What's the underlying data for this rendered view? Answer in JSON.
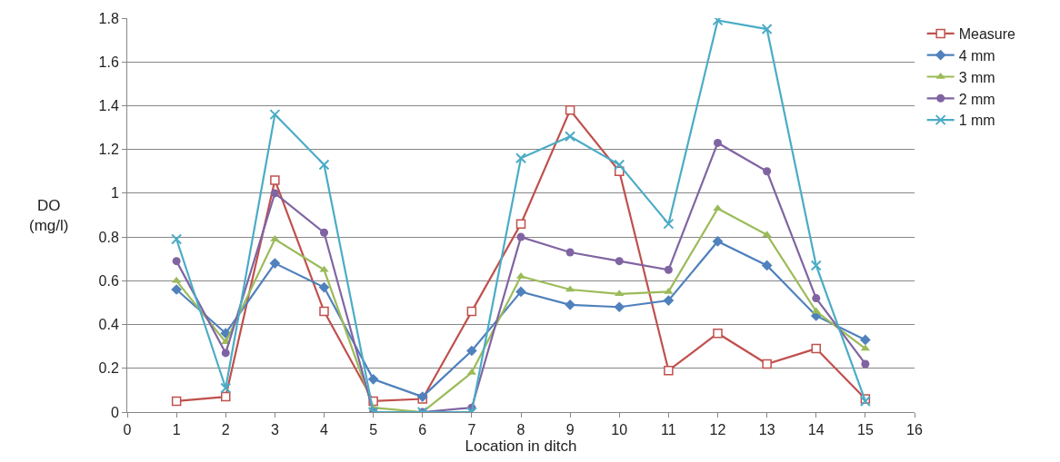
{
  "chart_data": {
    "type": "line",
    "xlabel": "Location in ditch",
    "ylabel": "DO\n(mg/l)",
    "x": [
      1,
      2,
      3,
      4,
      5,
      6,
      7,
      8,
      9,
      10,
      11,
      12,
      13,
      14,
      15
    ],
    "xlim": [
      0,
      16
    ],
    "xticks": [
      0,
      1,
      2,
      3,
      4,
      5,
      6,
      7,
      8,
      9,
      10,
      11,
      12,
      13,
      14,
      15,
      16
    ],
    "ylim": [
      0,
      1.8
    ],
    "yticks": [
      0,
      0.2,
      0.4,
      0.6,
      0.8,
      1,
      1.2,
      1.4,
      1.6,
      1.8
    ],
    "grid": "y",
    "legend": "right",
    "line_style": "solid",
    "series": [
      {
        "name": "Measure",
        "color": "#c0504d",
        "marker": "square",
        "values": [
          0.05,
          0.07,
          1.06,
          0.46,
          0.05,
          0.06,
          0.46,
          0.86,
          1.38,
          1.1,
          0.19,
          0.36,
          0.22,
          0.29,
          0.06
        ]
      },
      {
        "name": "4 mm",
        "color": "#4f81bd",
        "marker": "diamond",
        "values": [
          0.56,
          0.36,
          0.68,
          0.57,
          0.15,
          0.07,
          0.28,
          0.55,
          0.49,
          0.48,
          0.51,
          0.78,
          0.67,
          0.44,
          0.33
        ]
      },
      {
        "name": "3 mm",
        "color": "#9bbb59",
        "marker": "triangle",
        "values": [
          0.6,
          0.32,
          0.79,
          0.65,
          0.02,
          0.0,
          0.18,
          0.62,
          0.56,
          0.54,
          0.55,
          0.93,
          0.81,
          0.46,
          0.29
        ]
      },
      {
        "name": "2 mm",
        "color": "#8064a2",
        "marker": "circle",
        "values": [
          0.69,
          0.27,
          1.0,
          0.82,
          0.0,
          0.0,
          0.02,
          0.8,
          0.73,
          0.69,
          0.65,
          1.23,
          1.1,
          0.52,
          0.22
        ]
      },
      {
        "name": "1 mm",
        "color": "#4bacc6",
        "marker": "cross",
        "values": [
          0.79,
          0.11,
          1.36,
          1.13,
          0.0,
          0.0,
          0.0,
          1.16,
          1.26,
          1.13,
          0.86,
          1.79,
          1.75,
          0.67,
          0.05
        ]
      }
    ]
  }
}
